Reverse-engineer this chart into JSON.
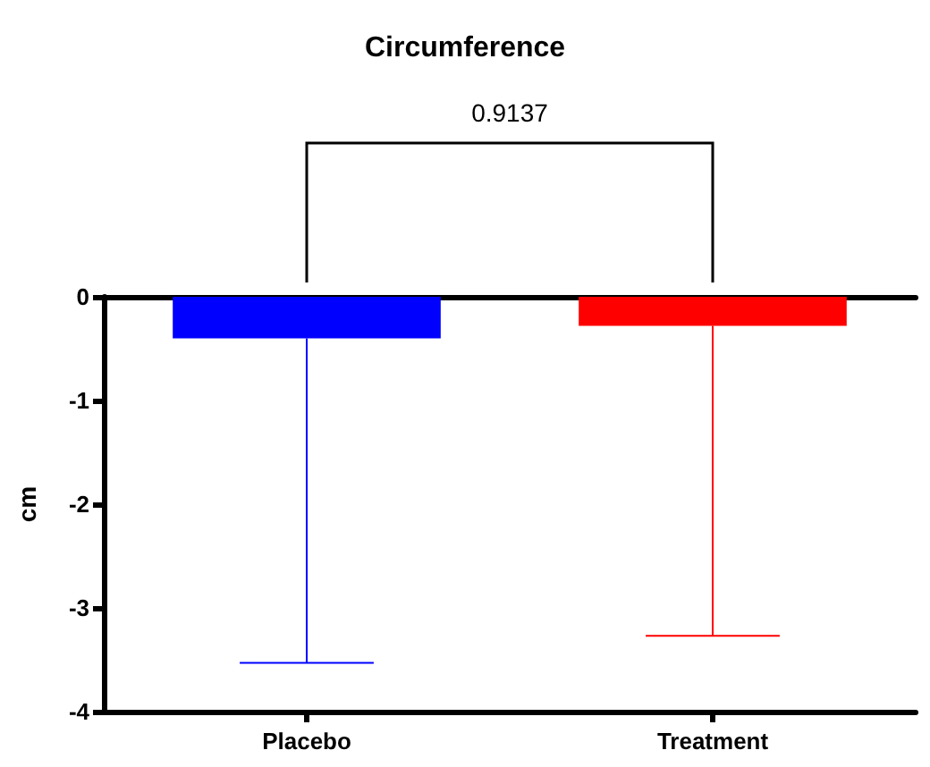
{
  "chart_data": {
    "type": "bar",
    "title": "Circumference",
    "ylabel": "cm",
    "categories": [
      "Placebo",
      "Treatment"
    ],
    "values": [
      -0.4,
      -0.28
    ],
    "colors": [
      "#0000ff",
      "#ff0000"
    ],
    "errors": [
      [
        -3.53,
        -0.4
      ],
      [
        -3.27,
        -0.28
      ]
    ],
    "ylim": [
      -4,
      0
    ],
    "yticks": [
      -4,
      -3,
      -2,
      -1,
      0
    ],
    "grid": false,
    "annotations": [
      "0.9137"
    ]
  }
}
